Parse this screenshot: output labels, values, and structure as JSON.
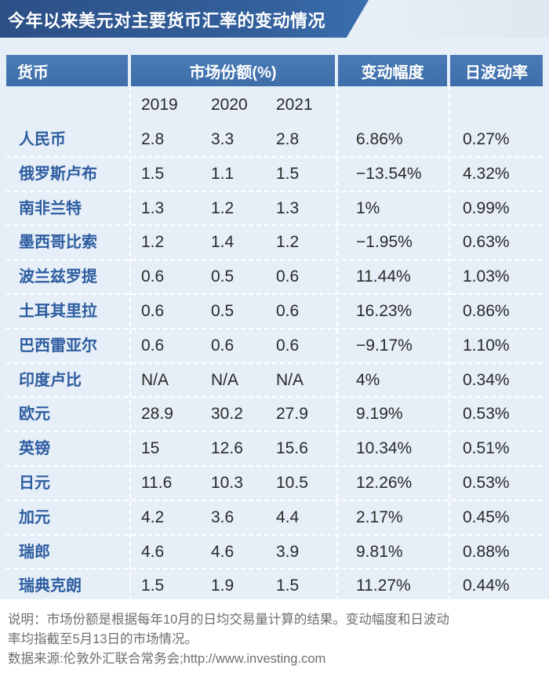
{
  "title": "今年以来美元对主要货币汇率的变动情况",
  "headers": {
    "currency": "货币",
    "market_share": "市场份额(%)",
    "change": "变动幅度",
    "volatility": "日波动率"
  },
  "years": [
    "2019",
    "2020",
    "2021"
  ],
  "rows": [
    {
      "name": "人民币",
      "s2019": "2.8",
      "s2020": "3.3",
      "s2021": "2.8",
      "change": "6.86%",
      "vol": "0.27%"
    },
    {
      "name": "俄罗斯卢布",
      "s2019": "1.5",
      "s2020": "1.1",
      "s2021": "1.5",
      "change": "−13.54%",
      "vol": "4.32%"
    },
    {
      "name": "南非兰特",
      "s2019": "1.3",
      "s2020": "1.2",
      "s2021": "1.3",
      "change": "1%",
      "vol": "0.99%"
    },
    {
      "name": "墨西哥比索",
      "s2019": "1.2",
      "s2020": "1.4",
      "s2021": "1.2",
      "change": "−1.95%",
      "vol": "0.63%"
    },
    {
      "name": "波兰兹罗提",
      "s2019": "0.6",
      "s2020": "0.5",
      "s2021": "0.6",
      "change": "11.44%",
      "vol": "1.03%"
    },
    {
      "name": "土耳其里拉",
      "s2019": "0.6",
      "s2020": "0.5",
      "s2021": "0.6",
      "change": "16.23%",
      "vol": "0.86%"
    },
    {
      "name": "巴西雷亚尔",
      "s2019": "0.6",
      "s2020": "0.6",
      "s2021": "0.6",
      "change": "−9.17%",
      "vol": "1.10%"
    },
    {
      "name": "印度卢比",
      "s2019": "N/A",
      "s2020": "N/A",
      "s2021": "N/A",
      "change": "4%",
      "vol": "0.34%"
    },
    {
      "name": "欧元",
      "s2019": "28.9",
      "s2020": "30.2",
      "s2021": "27.9",
      "change": "9.19%",
      "vol": "0.53%"
    },
    {
      "name": "英镑",
      "s2019": "15",
      "s2020": "12.6",
      "s2021": "15.6",
      "change": "10.34%",
      "vol": "0.51%"
    },
    {
      "name": "日元",
      "s2019": "11.6",
      "s2020": "10.3",
      "s2021": "10.5",
      "change": "12.26%",
      "vol": "0.53%"
    },
    {
      "name": "加元",
      "s2019": "4.2",
      "s2020": "3.6",
      "s2021": "4.4",
      "change": "2.17%",
      "vol": "0.45%"
    },
    {
      "name": "瑞郎",
      "s2019": "4.6",
      "s2020": "4.6",
      "s2021": "3.9",
      "change": "9.81%",
      "vol": "0.88%"
    },
    {
      "name": "瑞典克朗",
      "s2019": "1.5",
      "s2020": "1.9",
      "s2021": "1.5",
      "change": "11.27%",
      "vol": "0.44%"
    }
  ],
  "notes": {
    "line1": "说明：市场份额是根据每年10月的日均交易量计算的结果。变动幅度和日波动",
    "line2": "率均指截至5月13日的市场情况。",
    "line3": "数据来源:伦敦外汇联合常务会;http://www.investing.com"
  }
}
